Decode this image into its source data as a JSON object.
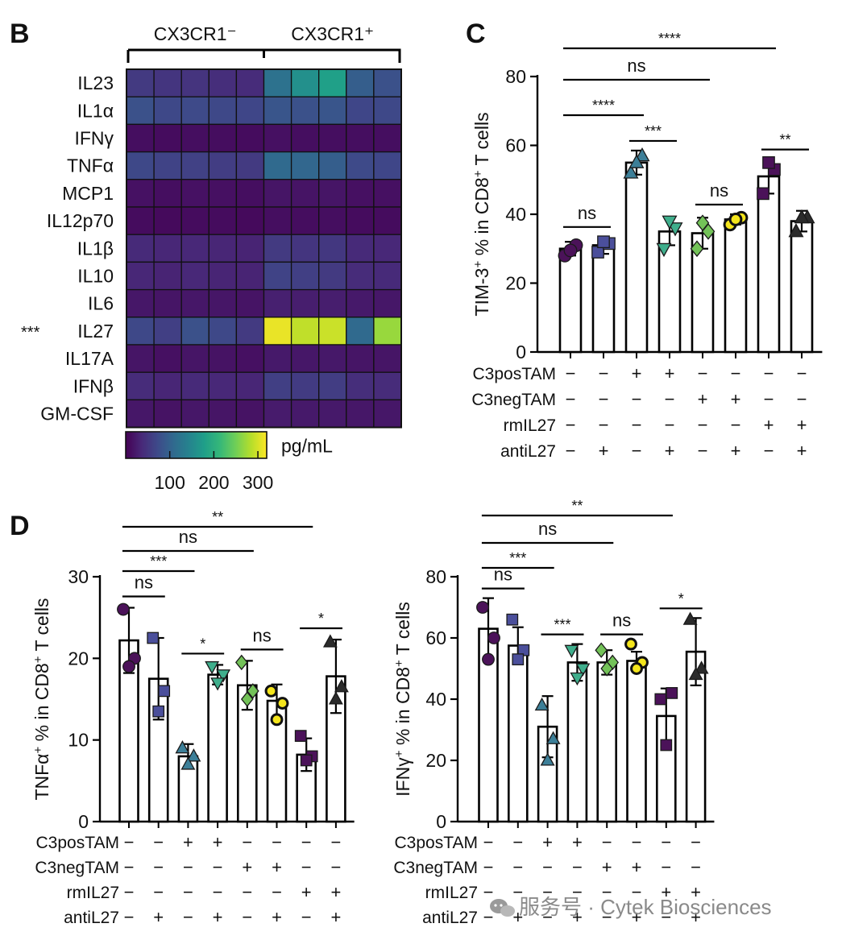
{
  "palette": {
    "viridis": [
      "#440154",
      "#482878",
      "#3e4989",
      "#31688e",
      "#26828e",
      "#1f9e89",
      "#35b779",
      "#6ece58",
      "#b5de2b",
      "#fde725"
    ],
    "bar_stroke": "#000000",
    "bar_fill": "#ffffff",
    "watermark": "#8a8a8a"
  },
  "chart_data": [
    {
      "panel": "B",
      "type": "heatmap",
      "group_labels": [
        "CX3CR1⁻",
        "CX3CR1⁺"
      ],
      "rows": [
        "IL23",
        "IL1α",
        "IFNγ",
        "TNFα",
        "MCP1",
        "IL12p70",
        "IL1β",
        "IL10",
        "IL6",
        "IL27",
        "IL17A",
        "IFNβ",
        "GM-CSF"
      ],
      "row_annotation": {
        "row": "IL27",
        "text": "***"
      },
      "values": [
        [
          55,
          50,
          48,
          42,
          40,
          120,
          160,
          180,
          95,
          80
        ],
        [
          80,
          70,
          72,
          70,
          68,
          85,
          80,
          85,
          68,
          70
        ],
        [
          12,
          10,
          12,
          11,
          10,
          14,
          12,
          12,
          12,
          12
        ],
        [
          70,
          65,
          62,
          58,
          55,
          110,
          105,
          95,
          72,
          68
        ],
        [
          15,
          12,
          15,
          14,
          12,
          18,
          17,
          18,
          14,
          14
        ],
        [
          10,
          8,
          10,
          10,
          8,
          12,
          11,
          12,
          10,
          10
        ],
        [
          38,
          35,
          36,
          34,
          32,
          55,
          50,
          52,
          38,
          36
        ],
        [
          35,
          32,
          36,
          33,
          32,
          65,
          60,
          55,
          40,
          38
        ],
        [
          20,
          18,
          20,
          19,
          17,
          28,
          26,
          26,
          22,
          20
        ],
        [
          70,
          60,
          80,
          70,
          55,
          310,
          290,
          295,
          110,
          270
        ],
        [
          18,
          14,
          18,
          16,
          14,
          22,
          20,
          21,
          18,
          18
        ],
        [
          40,
          34,
          38,
          36,
          34,
          60,
          56,
          58,
          42,
          40
        ],
        [
          20,
          16,
          20,
          18,
          16,
          24,
          22,
          22,
          20,
          20
        ]
      ],
      "colorbar": {
        "label": "pg/mL",
        "ticks": [
          "100",
          "200",
          "300"
        ],
        "range": [
          0,
          320
        ]
      }
    },
    {
      "panel": "C",
      "type": "bar",
      "ylabel_main": "TIM-3",
      "ylabel_sup": "+",
      "ylabel_mid": " % in CD8",
      "ylabel_sup2": "+",
      "ylabel_end": " T cells",
      "ylim": [
        0,
        80
      ],
      "yticks": [
        "0",
        "20",
        "40",
        "60",
        "80"
      ],
      "means": [
        30,
        31,
        55,
        35,
        34.5,
        38.5,
        51,
        38
      ],
      "sd": [
        2,
        2.5,
        3.5,
        4,
        4.5,
        1.5,
        5,
        3
      ],
      "points": [
        [
          28,
          31,
          29.5
        ],
        [
          29,
          31.5,
          32
        ],
        [
          52,
          57,
          55
        ],
        [
          30,
          36,
          38
        ],
        [
          30,
          35,
          37.5
        ],
        [
          37,
          39,
          38.5
        ],
        [
          46,
          53,
          55
        ],
        [
          35,
          39,
          39
        ]
      ],
      "markers": [
        "circle",
        "square",
        "triangle",
        "tri-down",
        "diamond",
        "circle-open",
        "square",
        "triangle"
      ],
      "colors": [
        "#4b1259",
        "#4b4f9b",
        "#3c7f98",
        "#3fae8c",
        "#73c258",
        "#f4e51c",
        "#4b1259",
        "#2b2b2b"
      ],
      "row_labels": [
        "C3posTAM",
        "C3negTAM",
        "rmIL27",
        "antiL27"
      ],
      "row_signs": [
        [
          "−",
          "−",
          "+",
          "+",
          "−",
          "−",
          "−",
          "−"
        ],
        [
          "−",
          "−",
          "−",
          "−",
          "+",
          "+",
          "−",
          "−"
        ],
        [
          "−",
          "−",
          "−",
          "−",
          "−",
          "−",
          "+",
          "+"
        ],
        [
          "−",
          "+",
          "−",
          "+",
          "−",
          "+",
          "−",
          "+"
        ]
      ],
      "comparisons": [
        {
          "from": 0,
          "to": 6,
          "label": "****",
          "level": 3
        },
        {
          "from": 0,
          "to": 4,
          "label": "ns",
          "level": 2
        },
        {
          "from": 0,
          "to": 2,
          "label": "****",
          "level": 1
        },
        {
          "from": 0,
          "to": 1,
          "label": "ns",
          "level": 0
        },
        {
          "from": 2,
          "to": 3,
          "label": "***",
          "level": 0
        },
        {
          "from": 4,
          "to": 5,
          "label": "ns",
          "level": 0
        },
        {
          "from": 6,
          "to": 7,
          "label": "**",
          "level": 0
        }
      ]
    },
    {
      "panel": "D1",
      "type": "bar",
      "ylabel_main": "TNFα",
      "ylabel_sup": "+",
      "ylabel_mid": " % in CD8",
      "ylabel_sup2": "+",
      "ylabel_end": " T cells",
      "ylim": [
        0,
        30
      ],
      "yticks": [
        "0",
        "10",
        "20",
        "30"
      ],
      "means": [
        22.2,
        17.5,
        8,
        18,
        16.7,
        14.8,
        8.2,
        17.8
      ],
      "sd": [
        4,
        5,
        1.5,
        1.2,
        3,
        2,
        2,
        4.5
      ],
      "points": [
        [
          26,
          20,
          19
        ],
        [
          22.5,
          16,
          13.5
        ],
        [
          9,
          8,
          7
        ],
        [
          19,
          18,
          17
        ],
        [
          19.5,
          16,
          15
        ],
        [
          16,
          14.5,
          12.5
        ],
        [
          10.5,
          8,
          7.5
        ],
        [
          22,
          16.5,
          15
        ]
      ],
      "markers": [
        "circle",
        "square",
        "triangle",
        "tri-down",
        "diamond",
        "circle-open",
        "square",
        "triangle"
      ],
      "colors": [
        "#4b1259",
        "#4b4f9b",
        "#3c7f98",
        "#3fae8c",
        "#73c258",
        "#f4e51c",
        "#4b1259",
        "#2b2b2b"
      ],
      "row_labels": [
        "C3posTAM",
        "C3negTAM",
        "rmIL27",
        "antiL27"
      ],
      "row_signs": [
        [
          "−",
          "−",
          "+",
          "+",
          "−",
          "−",
          "−",
          "−"
        ],
        [
          "−",
          "−",
          "−",
          "−",
          "+",
          "+",
          "−",
          "−"
        ],
        [
          "−",
          "−",
          "−",
          "−",
          "−",
          "−",
          "+",
          "+"
        ],
        [
          "−",
          "+",
          "−",
          "+",
          "−",
          "+",
          "−",
          "+"
        ]
      ],
      "comparisons": [
        {
          "from": 0,
          "to": 6,
          "label": "**",
          "level": 3
        },
        {
          "from": 0,
          "to": 4,
          "label": "ns",
          "level": 2
        },
        {
          "from": 0,
          "to": 2,
          "label": "***",
          "level": 1
        },
        {
          "from": 0,
          "to": 1,
          "label": "ns",
          "level": 0
        },
        {
          "from": 2,
          "to": 3,
          "label": "*",
          "level": 0
        },
        {
          "from": 4,
          "to": 5,
          "label": "ns",
          "level": 0
        },
        {
          "from": 6,
          "to": 7,
          "label": "*",
          "level": 0
        }
      ]
    },
    {
      "panel": "D2",
      "type": "bar",
      "ylabel_main": "IFNγ",
      "ylabel_sup": "+",
      "ylabel_mid": " % in CD8",
      "ylabel_sup2": "+",
      "ylabel_end": " T cells",
      "ylim": [
        0,
        80
      ],
      "yticks": [
        "0",
        "20",
        "40",
        "60",
        "80"
      ],
      "means": [
        63,
        57.5,
        31,
        52,
        52,
        52.5,
        34.5,
        55.5
      ],
      "sd": [
        10,
        6,
        10,
        6,
        4,
        3,
        9,
        11
      ],
      "points": [
        [
          70,
          60,
          53
        ],
        [
          66,
          56,
          53
        ],
        [
          38,
          27,
          20
        ],
        [
          56,
          50,
          47
        ],
        [
          56,
          52,
          50
        ],
        [
          58,
          52,
          50
        ],
        [
          40,
          42,
          25
        ],
        [
          66,
          50,
          48
        ]
      ],
      "markers": [
        "circle",
        "square",
        "triangle",
        "tri-down",
        "diamond",
        "circle-open",
        "square",
        "triangle"
      ],
      "colors": [
        "#4b1259",
        "#4b4f9b",
        "#3c7f98",
        "#3fae8c",
        "#73c258",
        "#f4e51c",
        "#4b1259",
        "#2b2b2b"
      ],
      "row_labels": [
        "C3posTAM",
        "C3negTAM",
        "rmIL27",
        "antiL27"
      ],
      "row_signs": [
        [
          "−",
          "−",
          "+",
          "+",
          "−",
          "−",
          "−",
          "−"
        ],
        [
          "−",
          "−",
          "−",
          "−",
          "+",
          "+",
          "−",
          "−"
        ],
        [
          "−",
          "−",
          "−",
          "−",
          "−",
          "−",
          "+",
          "+"
        ],
        [
          "−",
          "+",
          "−",
          "+",
          "−",
          "+",
          "−",
          "+"
        ]
      ],
      "comparisons": [
        {
          "from": 0,
          "to": 6,
          "label": "**",
          "level": 3
        },
        {
          "from": 0,
          "to": 4,
          "label": "ns",
          "level": 2
        },
        {
          "from": 0,
          "to": 2,
          "label": "***",
          "level": 1
        },
        {
          "from": 0,
          "to": 1,
          "label": "ns",
          "level": 0
        },
        {
          "from": 2,
          "to": 3,
          "label": "***",
          "level": 0
        },
        {
          "from": 4,
          "to": 5,
          "label": "ns",
          "level": 0
        },
        {
          "from": 6,
          "to": 7,
          "label": "*",
          "level": 0
        }
      ]
    }
  ],
  "panel_letters": {
    "b": "B",
    "c": "C",
    "d": "D"
  },
  "watermark": "服务号 · Cytek Biosciences"
}
